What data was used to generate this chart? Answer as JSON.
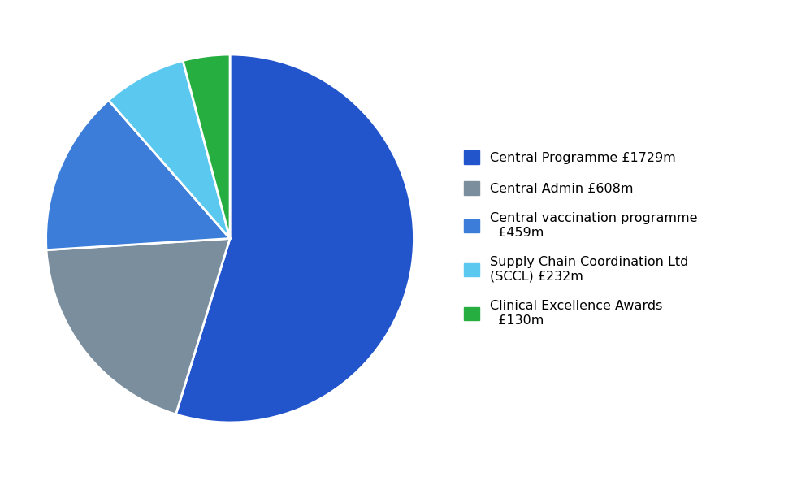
{
  "labels": [
    "Central Programme £1729m",
    "Central Admin £608m",
    "Central vaccination programme\n  £459m",
    "Supply Chain Coordination Ltd\n(SCCL) £232m",
    "Clinical Excellence Awards\n  £130m"
  ],
  "values": [
    1729,
    608,
    459,
    232,
    130
  ],
  "colors": [
    "#2255CC",
    "#7A8E9E",
    "#3B7DD8",
    "#5BC8F0",
    "#27AE40"
  ],
  "startangle": 90,
  "background_color": "#ffffff",
  "figsize": [
    9.76,
    5.87
  ],
  "dpi": 100
}
